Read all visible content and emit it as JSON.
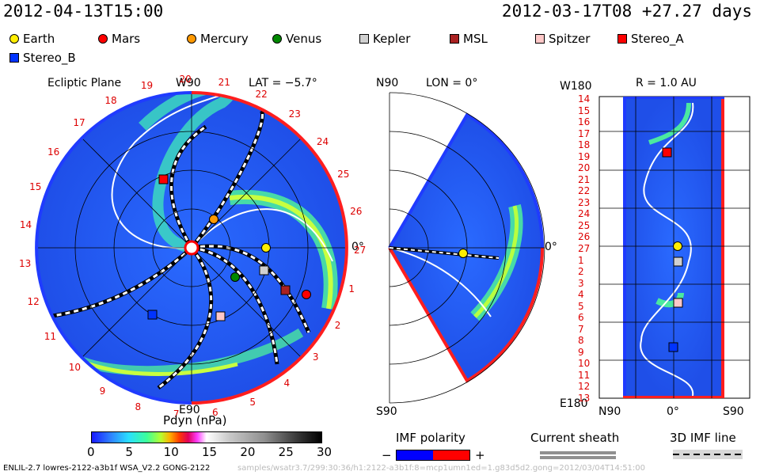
{
  "header": {
    "datetime": "2012-04-13T15:00",
    "model_time": "2012-03-17T08 +27.27 days"
  },
  "legend": [
    {
      "name": "Earth",
      "color": "#ffee00",
      "shape": "circle"
    },
    {
      "name": "Mars",
      "color": "#ff0000",
      "shape": "circle"
    },
    {
      "name": "Mercury",
      "color": "#ff9900",
      "shape": "circle"
    },
    {
      "name": "Venus",
      "color": "#008800",
      "shape": "circle"
    },
    {
      "name": "Kepler",
      "color": "#d0d0d0",
      "shape": "square"
    },
    {
      "name": "MSL",
      "color": "#aa2222",
      "shape": "square"
    },
    {
      "name": "Spitzer",
      "color": "#ffc8c8",
      "shape": "square"
    },
    {
      "name": "Stereo_A",
      "color": "#ff0000",
      "shape": "square"
    },
    {
      "name": "Stereo_B",
      "color": "#0033ff",
      "shape": "square"
    }
  ],
  "panels": {
    "ecliptic": {
      "title": "Ecliptic Plane",
      "top_label": "W90",
      "lat_label": "LAT = −5.7°",
      "bottom_label": "E90",
      "right_label": "0°",
      "carrington": [
        "20",
        "21",
        "22",
        "23",
        "24",
        "25",
        "26",
        "27",
        "1",
        "2",
        "3",
        "4",
        "5",
        "6",
        "7",
        "8",
        "9",
        "10",
        "11",
        "12",
        "13",
        "14",
        "15",
        "16",
        "17",
        "18",
        "19"
      ]
    },
    "meridional": {
      "top_left": "N90",
      "lon_label": "LON = 0°",
      "bottom_left": "S90",
      "right_label": "0°"
    },
    "radial": {
      "title": "R = 1.0 AU",
      "top_left": "W180",
      "bottom_left": "E180",
      "x_labels": [
        "N90",
        "0°",
        "S90"
      ],
      "rows": [
        "14",
        "15",
        "16",
        "17",
        "18",
        "19",
        "20",
        "21",
        "22",
        "23",
        "24",
        "25",
        "26",
        "27",
        "1",
        "2",
        "3",
        "4",
        "5",
        "6",
        "7",
        "8",
        "9",
        "10",
        "11",
        "12",
        "13"
      ]
    }
  },
  "colorbar": {
    "title": "Pdyn (nPa)",
    "ticks": [
      "0",
      "5",
      "10",
      "15",
      "20",
      "25",
      "30"
    ]
  },
  "keys": {
    "imf_title": "IMF polarity",
    "imf_minus": "−",
    "imf_plus": "+",
    "imf_neg_color": "#0000ff",
    "imf_pos_color": "#ff0000",
    "current_sheath": "Current sheath",
    "imf_3d": "3D IMF line"
  },
  "footer": "ENLIL-2.7 lowres-2122-a3b1f WSA_V2.2 GONG-2122",
  "footer_faint": "samples/wsatr3.7/299:30:36/h1:2122-a3b1f:8=mcp1umn1ed=1.g83d5d2.gong=2012/03/04T14:51:00",
  "chart_data": {
    "type": "heatmap",
    "title": "Pdyn (nPa)",
    "ylim": [
      0,
      30
    ]
  }
}
